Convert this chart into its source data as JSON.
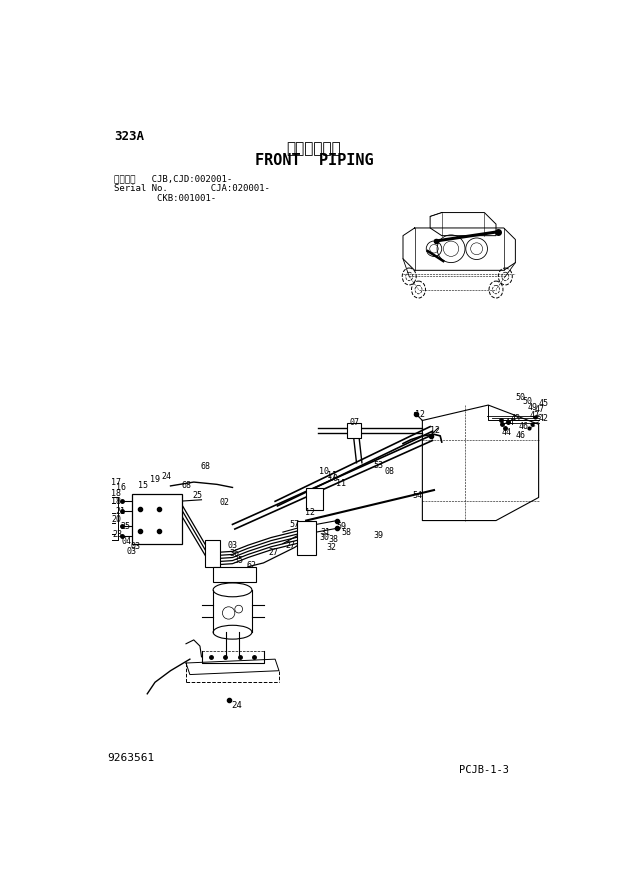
{
  "title_japanese": "フロント配管",
  "title_english": "FRONT  PIPING",
  "page_id": "323A",
  "doc_number": "9263561",
  "page_ref": "PCJB-1-3",
  "serial_line1": "適用号機   CJB,CJD:002001-",
  "serial_line2": "Serial No.        CJA:020001-",
  "serial_line3": "        CKB:001001-",
  "bg_color": "#ffffff",
  "line_color": "#000000"
}
